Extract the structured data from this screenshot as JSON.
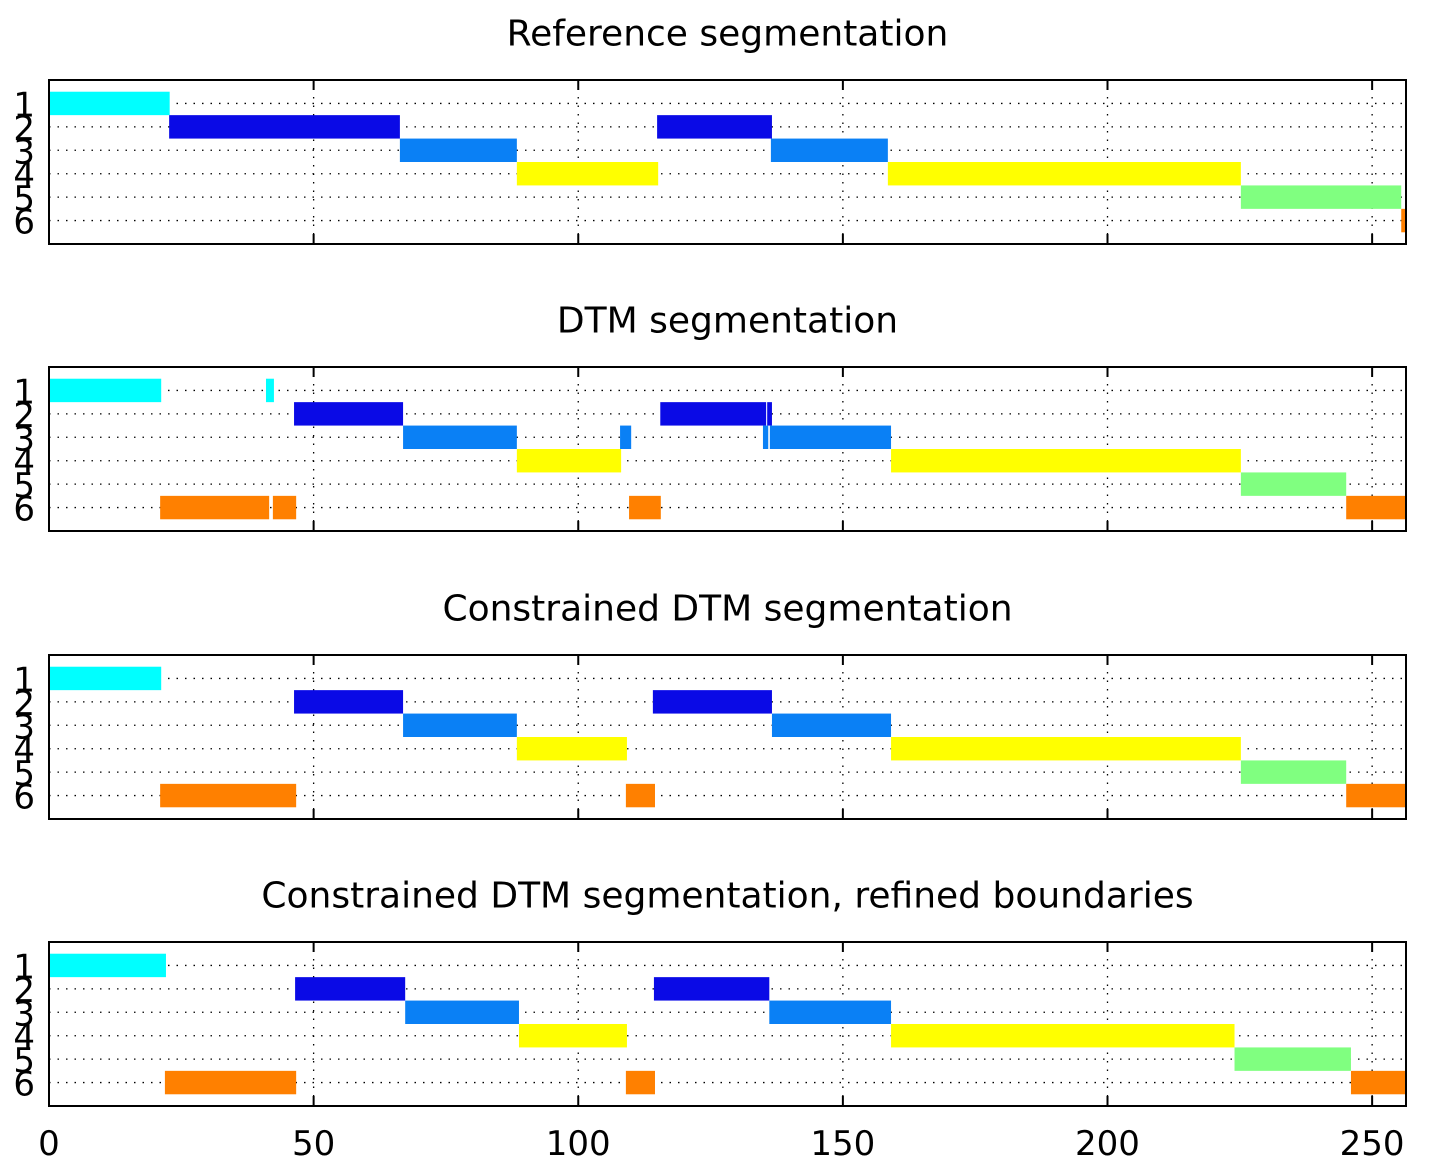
{
  "chart_data": [
    {
      "type": "timeline",
      "title": "Reference segmentation",
      "xlim": [
        0,
        256.4
      ],
      "xticks": [
        0,
        50,
        100,
        150,
        200,
        250
      ],
      "xtick_labels": false,
      "ylim": [
        0,
        7
      ],
      "yticks": [
        1,
        2,
        3,
        4,
        5,
        6
      ],
      "grid": true,
      "class_colors": [
        "#00ffff",
        "#0a0ae6",
        "#0a80f5",
        "#ffff00",
        "#80ff80",
        "#ff8000"
      ],
      "segments": [
        {
          "row": 1,
          "start": 0,
          "end": 22.8
        },
        {
          "row": 2,
          "start": 22.7,
          "end": 66.3
        },
        {
          "row": 3,
          "start": 66.3,
          "end": 88.4
        },
        {
          "row": 4,
          "start": 88.4,
          "end": 115.1
        },
        {
          "row": 2,
          "start": 114.9,
          "end": 136.6
        },
        {
          "row": 3,
          "start": 136.4,
          "end": 158.5
        },
        {
          "row": 4,
          "start": 158.5,
          "end": 225.2
        },
        {
          "row": 5,
          "start": 225.2,
          "end": 255.5
        },
        {
          "row": 6,
          "start": 255.5,
          "end": 256.4
        }
      ]
    },
    {
      "type": "timeline",
      "title": "DTM segmentation",
      "xlim": [
        0,
        256.4
      ],
      "xticks": [
        0,
        50,
        100,
        150,
        200,
        250
      ],
      "xtick_labels": false,
      "ylim": [
        0,
        7
      ],
      "yticks": [
        1,
        2,
        3,
        4,
        5,
        6
      ],
      "grid": true,
      "class_colors": [
        "#00ffff",
        "#0a0ae6",
        "#0a80f5",
        "#ffff00",
        "#80ff80",
        "#ff8000"
      ],
      "segments": [
        {
          "row": 1,
          "start": 0,
          "end": 21.2
        },
        {
          "row": 1,
          "start": 41,
          "end": 42.5
        },
        {
          "row": 2,
          "start": 46.3,
          "end": 66.9
        },
        {
          "row": 3,
          "start": 66.9,
          "end": 88.4
        },
        {
          "row": 4,
          "start": 88.4,
          "end": 108.1
        },
        {
          "row": 3,
          "start": 107.9,
          "end": 110
        },
        {
          "row": 2,
          "start": 115.5,
          "end": 135.5
        },
        {
          "row": 2,
          "start": 135.7,
          "end": 136.6
        },
        {
          "row": 3,
          "start": 134.9,
          "end": 135.9
        },
        {
          "row": 3,
          "start": 136.2,
          "end": 159.1
        },
        {
          "row": 4,
          "start": 159.1,
          "end": 225.2
        },
        {
          "row": 5,
          "start": 225.2,
          "end": 245.1
        },
        {
          "row": 6,
          "start": 245.1,
          "end": 256.4
        },
        {
          "row": 6,
          "start": 21,
          "end": 41.6
        },
        {
          "row": 6,
          "start": 42.3,
          "end": 46.7
        },
        {
          "row": 6,
          "start": 109.6,
          "end": 115.6
        }
      ]
    },
    {
      "type": "timeline",
      "title": "Constrained DTM segmentation",
      "xlim": [
        0,
        256.4
      ],
      "xticks": [
        0,
        50,
        100,
        150,
        200,
        250
      ],
      "xtick_labels": false,
      "ylim": [
        0,
        7
      ],
      "yticks": [
        1,
        2,
        3,
        4,
        5,
        6
      ],
      "grid": true,
      "class_colors": [
        "#00ffff",
        "#0a0ae6",
        "#0a80f5",
        "#ffff00",
        "#80ff80",
        "#ff8000"
      ],
      "segments": [
        {
          "row": 1,
          "start": 0,
          "end": 21.2
        },
        {
          "row": 2,
          "start": 46.3,
          "end": 66.9
        },
        {
          "row": 3,
          "start": 66.9,
          "end": 88.4
        },
        {
          "row": 4,
          "start": 88.4,
          "end": 109.2
        },
        {
          "row": 2,
          "start": 114.1,
          "end": 136.6
        },
        {
          "row": 3,
          "start": 136.6,
          "end": 159.1
        },
        {
          "row": 4,
          "start": 159.1,
          "end": 225.2
        },
        {
          "row": 5,
          "start": 225.2,
          "end": 245.1
        },
        {
          "row": 6,
          "start": 245.1,
          "end": 256.4
        },
        {
          "row": 6,
          "start": 21,
          "end": 46.7
        },
        {
          "row": 6,
          "start": 109,
          "end": 114.5
        }
      ]
    },
    {
      "type": "timeline",
      "title": "Constrained DTM segmentation, refined boundaries",
      "xlim": [
        0,
        256.4
      ],
      "xticks": [
        0,
        50,
        100,
        150,
        200,
        250
      ],
      "xtick_labels": true,
      "ylim": [
        0,
        7
      ],
      "yticks": [
        1,
        2,
        3,
        4,
        5,
        6
      ],
      "grid": true,
      "class_colors": [
        "#00ffff",
        "#0a0ae6",
        "#0a80f5",
        "#ffff00",
        "#80ff80",
        "#ff8000"
      ],
      "segments": [
        {
          "row": 1,
          "start": 0,
          "end": 22.1
        },
        {
          "row": 2,
          "start": 46.5,
          "end": 67.3
        },
        {
          "row": 3,
          "start": 67.3,
          "end": 88.8
        },
        {
          "row": 4,
          "start": 88.8,
          "end": 109.2
        },
        {
          "row": 2,
          "start": 114.3,
          "end": 136.1
        },
        {
          "row": 3,
          "start": 136.1,
          "end": 159.1
        },
        {
          "row": 4,
          "start": 159.1,
          "end": 224
        },
        {
          "row": 5,
          "start": 224,
          "end": 246
        },
        {
          "row": 6,
          "start": 246,
          "end": 256.4
        },
        {
          "row": 6,
          "start": 21.9,
          "end": 46.7
        },
        {
          "row": 6,
          "start": 109,
          "end": 114.5
        }
      ]
    }
  ]
}
